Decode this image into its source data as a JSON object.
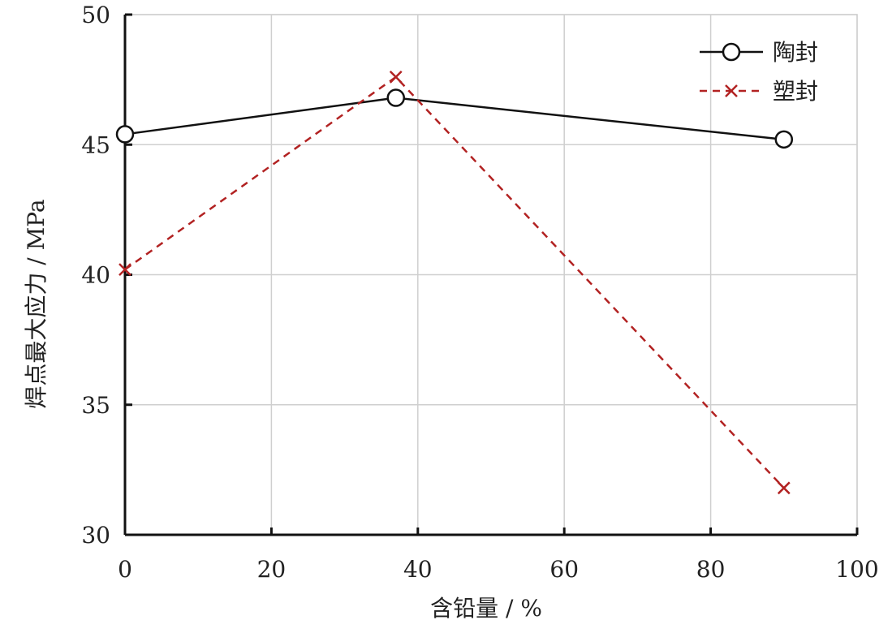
{
  "chart_data": {
    "type": "line",
    "title": "",
    "xlabel": "含铅量 / %",
    "ylabel": "焊点最大应力 / MPa",
    "xlim": [
      0,
      100
    ],
    "ylim": [
      30,
      50
    ],
    "xticks": [
      0,
      20,
      40,
      60,
      80,
      100
    ],
    "yticks": [
      30,
      35,
      40,
      45,
      50
    ],
    "grid": true,
    "legend_position": "top-right",
    "series": [
      {
        "name": "陶封",
        "color": "#111111",
        "line_style": "solid",
        "marker": "circle",
        "x": [
          0,
          37,
          90
        ],
        "y": [
          45.4,
          46.8,
          45.2
        ]
      },
      {
        "name": "塑封",
        "color": "#b22222",
        "line_style": "dashed",
        "marker": "x",
        "x": [
          0,
          37,
          90
        ],
        "y": [
          40.2,
          47.6,
          31.8
        ]
      }
    ]
  }
}
